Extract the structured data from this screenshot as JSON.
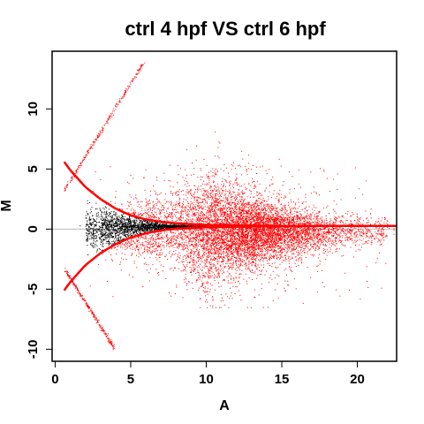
{
  "chart_data": {
    "type": "scatter",
    "title": "ctrl 4 hpf VS ctrl 6 hpf",
    "xlabel": "A",
    "ylabel": "M",
    "xlim": [
      -0.2,
      22.6
    ],
    "ylim": [
      -11.0,
      14.8
    ],
    "x_ticks": [
      0,
      5,
      10,
      15,
      20
    ],
    "y_ticks": [
      -10,
      -5,
      0,
      5,
      10
    ],
    "x_tick_labels": [
      "0",
      "5",
      "10",
      "15",
      "20"
    ],
    "y_tick_labels": [
      "-10",
      "-5",
      "0",
      "5",
      "10"
    ],
    "reference_line_y": 0,
    "colors": {
      "not_significant": "#000000",
      "significant": "#ff0000",
      "threshold_curve": "#ff0000",
      "reference_line": "#bbbbbb"
    },
    "threshold_curve": {
      "x": [
        0.6,
        1,
        2,
        3,
        4,
        5,
        6,
        7,
        8,
        10,
        12,
        15,
        20,
        22.6
      ],
      "upper_y": [
        5.6,
        4.9,
        3.5,
        2.5,
        1.7,
        1.15,
        0.8,
        0.6,
        0.48,
        0.35,
        0.3,
        0.27,
        0.26,
        0.26
      ],
      "lower_y": [
        -5.1,
        -4.4,
        -3.0,
        -2.0,
        -1.25,
        -0.7,
        -0.35,
        -0.1,
        0.03,
        0.15,
        0.2,
        0.24,
        0.26,
        0.26
      ]
    },
    "diagonal_bands": [
      {
        "x": [
          0.6,
          5.8
        ],
        "y": [
          3.3,
          13.8
        ]
      },
      {
        "x": [
          0.6,
          3.9
        ],
        "y": [
          -3.3,
          -9.9
        ]
      }
    ],
    "point_cloud": {
      "x_range": [
        0.5,
        22.6
      ],
      "y_range": [
        -6.5,
        8.8
      ],
      "dense_center_x": [
        10,
        16
      ],
      "dense_center_y": 0
    }
  }
}
